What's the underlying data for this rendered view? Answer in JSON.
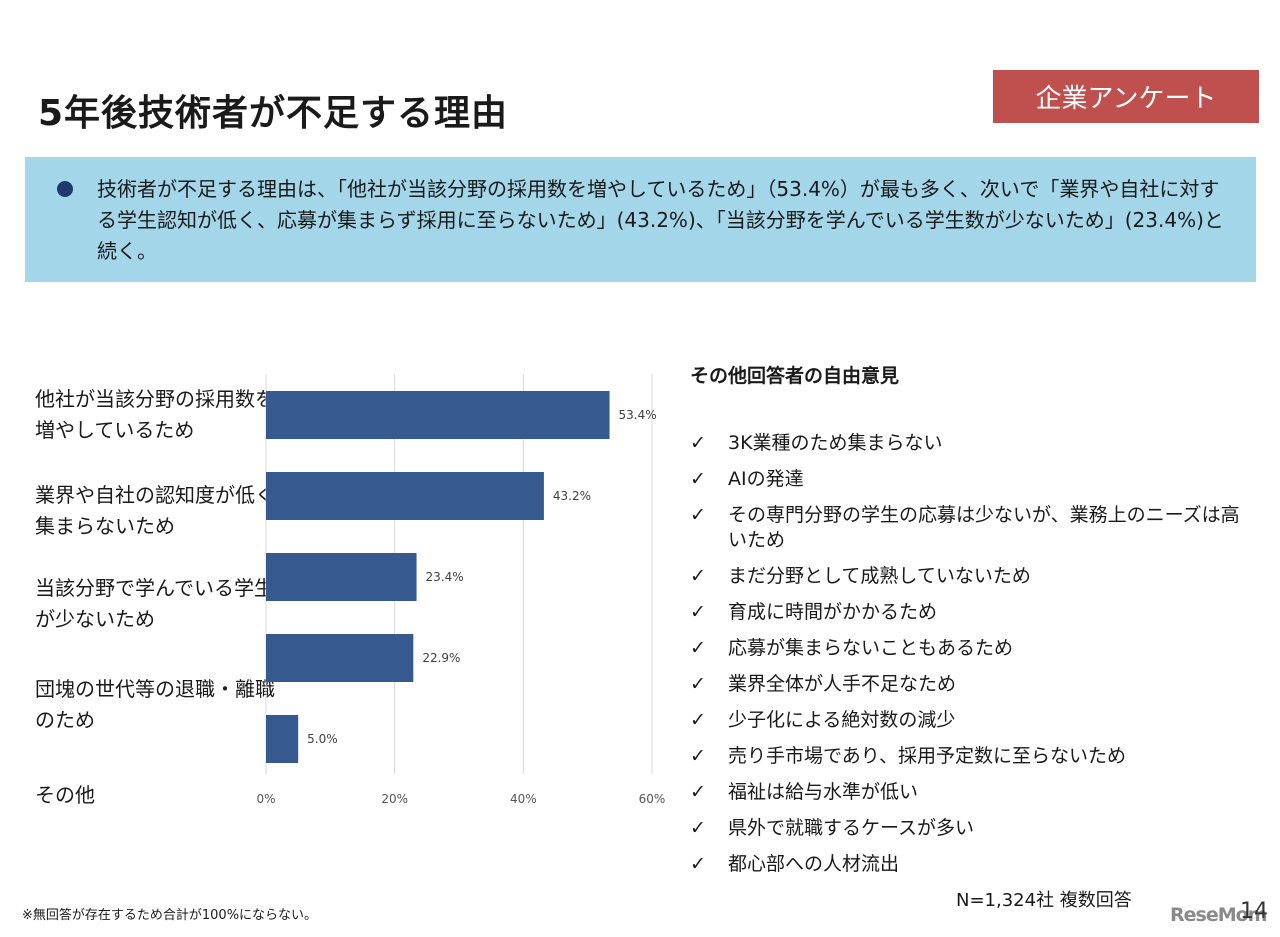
{
  "header": {
    "title": "5年後技術者が不足する理由",
    "badge": "企業アンケート"
  },
  "summary": {
    "text": "技術者が不足する理由は、「他社が当該分野の採用数を増やしているため」（53.4%）が最も多く、次いで「業界や自社に対する学生認知が低く、応募が集まらず採用に至らないため」(43.2%)、「当該分野を学んでいる学生数が少ないため」(23.4%)と続く。"
  },
  "chart_data": {
    "type": "bar",
    "orientation": "horizontal",
    "categories": [
      "他社が当該分野の採用数を増やしているため",
      "業界や自社の認知度が低く集まらないため",
      "当該分野で学んでいる学生が少ないため",
      "団塊の世代等の退職・離職のため",
      "その他"
    ],
    "values": [
      53.4,
      43.2,
      23.4,
      22.9,
      5.0
    ],
    "value_labels": [
      "53.4%",
      "43.2%",
      "23.4%",
      "22.9%",
      "5.0%"
    ],
    "xlim": [
      0,
      60
    ],
    "xticks": [
      "0%",
      "20%",
      "40%",
      "60%"
    ],
    "grid": true,
    "bar_color": "#36598f"
  },
  "opinions": {
    "title": "その他回答者の自由意見",
    "items": [
      "3K業種のため集まらない",
      "AIの発達",
      "その専門分野の学生の応募は少ないが、業務上のニーズは高いため",
      "まだ分野として成熟していないため",
      "育成に時間がかかるため",
      "応募が集まらないこともあるため",
      "業界全体が人手不足なため",
      "少子化による絶対数の減少",
      "売り手市場であり、採用予定数に至らないため",
      "福祉は給与水準が低い",
      "県外で就職するケースが多い",
      "都心部への人材流出"
    ]
  },
  "footer": {
    "n_count": "N=1,324社 複数回答",
    "footnote": "※無回答が存在するため合計が100%にならない。",
    "logo": "ReseMom",
    "page": "14"
  },
  "colors": {
    "badge": "#c0504d",
    "summary_bg": "#a4d6e9",
    "bullet": "#1f3a6e"
  }
}
